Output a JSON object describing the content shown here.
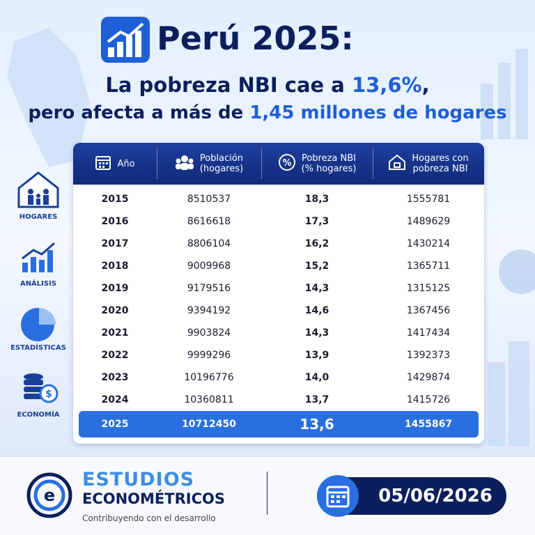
{
  "header": {
    "title": "Perú 2025:",
    "subtitle_1": [
      "La pobreza NBI cae a ",
      "13,6%",
      ","
    ],
    "subtitle_2": [
      "pero afecta a más de ",
      "1,45 millones de hogares"
    ]
  },
  "sidebar": [
    "HOGARES",
    "ANÁLISIS",
    "ESTADÍSTICAS",
    "ECONOMÍA"
  ],
  "table": {
    "columns": [
      "Año",
      "Población\n(hogares)",
      "Pobreza NBI\n(% hogares)",
      "Hogares con\npobreza NBI"
    ],
    "rows": [
      [
        "2015",
        "8510537",
        "18,3",
        "1555781"
      ],
      [
        "2016",
        "8616618",
        "17,3",
        "1489629"
      ],
      [
        "2017",
        "8806104",
        "16,2",
        "1430214"
      ],
      [
        "2018",
        "9009968",
        "15,2",
        "1365711"
      ],
      [
        "2019",
        "9179516",
        "14,3",
        "1315125"
      ],
      [
        "2020",
        "9394192",
        "14,6",
        "1367456"
      ],
      [
        "2021",
        "9903824",
        "14,3",
        "1417434"
      ],
      [
        "2022",
        "9999296",
        "13,9",
        "1392373"
      ],
      [
        "2023",
        "10196776",
        "14,0",
        "1429874"
      ],
      [
        "2024",
        "10360811",
        "13,7",
        "1415726"
      ],
      [
        "2025",
        "10712450",
        "13,6",
        "1455867"
      ]
    ]
  },
  "footer": {
    "brand_1": "ESTUDIOS",
    "brand_2": "ECONOMÉTRICOS",
    "tagline": "Contribuyendo con el desarrollo",
    "date": "05/06/2026"
  }
}
